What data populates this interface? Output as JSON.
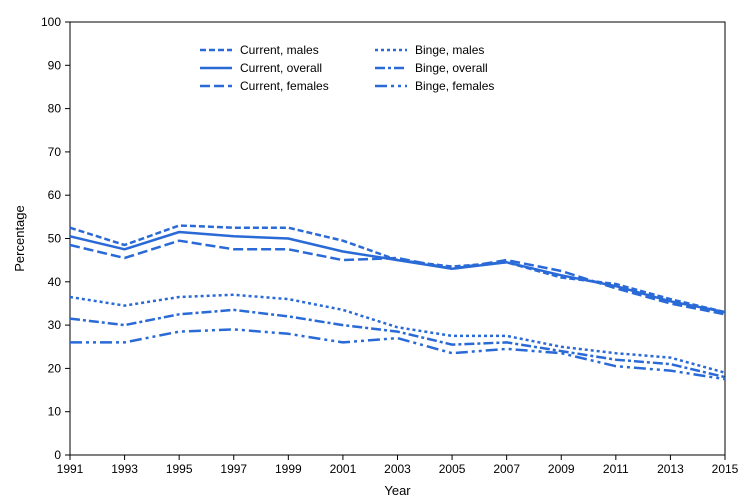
{
  "chart": {
    "type": "line",
    "background_color": "#ffffff",
    "axis_color": "#000000",
    "line_color": "#2a6ad6",
    "line_width": 2.5,
    "xlabel": "Year",
    "ylabel": "Percentage",
    "label_fontsize": 13,
    "tick_fontsize": 12,
    "xlim": [
      1991,
      2015
    ],
    "ylim": [
      0,
      100
    ],
    "xtick_step": 2,
    "ytick_step": 10,
    "years": [
      1991,
      1993,
      1995,
      1997,
      1999,
      2001,
      2003,
      2005,
      2007,
      2009,
      2011,
      2013,
      2015
    ],
    "series": [
      {
        "key": "current_males",
        "label": "Current, males",
        "dash": "6,3",
        "values": [
          52.5,
          48.5,
          53.0,
          52.5,
          52.5,
          49.5,
          45.0,
          43.5,
          44.5,
          41.0,
          39.5,
          36.0,
          33.0
        ]
      },
      {
        "key": "current_overall",
        "label": "Current, overall",
        "dash": "",
        "values": [
          50.5,
          47.5,
          51.5,
          50.5,
          50.0,
          47.0,
          45.0,
          43.0,
          44.5,
          41.5,
          39.0,
          35.5,
          33.0
        ]
      },
      {
        "key": "current_females",
        "label": "Current, females",
        "dash": "10,4",
        "values": [
          48.5,
          45.5,
          49.5,
          47.5,
          47.5,
          45.0,
          45.5,
          43.0,
          45.0,
          42.5,
          38.5,
          35.0,
          32.5
        ]
      },
      {
        "key": "binge_males",
        "label": "Binge, males",
        "dash": "3,3",
        "values": [
          36.5,
          34.5,
          36.5,
          37.0,
          36.0,
          33.5,
          29.5,
          27.5,
          27.5,
          25.0,
          23.5,
          22.5,
          19.0
        ]
      },
      {
        "key": "binge_overall",
        "label": "Binge, overall",
        "dash": "10,3,3,3",
        "values": [
          31.5,
          30.0,
          32.5,
          33.5,
          32.0,
          30.0,
          28.5,
          25.5,
          26.0,
          24.0,
          22.0,
          21.0,
          18.0
        ]
      },
      {
        "key": "binge_females",
        "label": "Binge, females",
        "dash": "12,4,3,4,3,4",
        "values": [
          26.0,
          26.0,
          28.5,
          29.0,
          28.0,
          26.0,
          27.0,
          23.5,
          24.5,
          23.5,
          20.5,
          19.5,
          17.5
        ]
      }
    ],
    "legend": {
      "columns": [
        [
          "current_males",
          "current_overall",
          "current_females"
        ],
        [
          "binge_males",
          "binge_overall",
          "binge_females"
        ]
      ]
    }
  }
}
